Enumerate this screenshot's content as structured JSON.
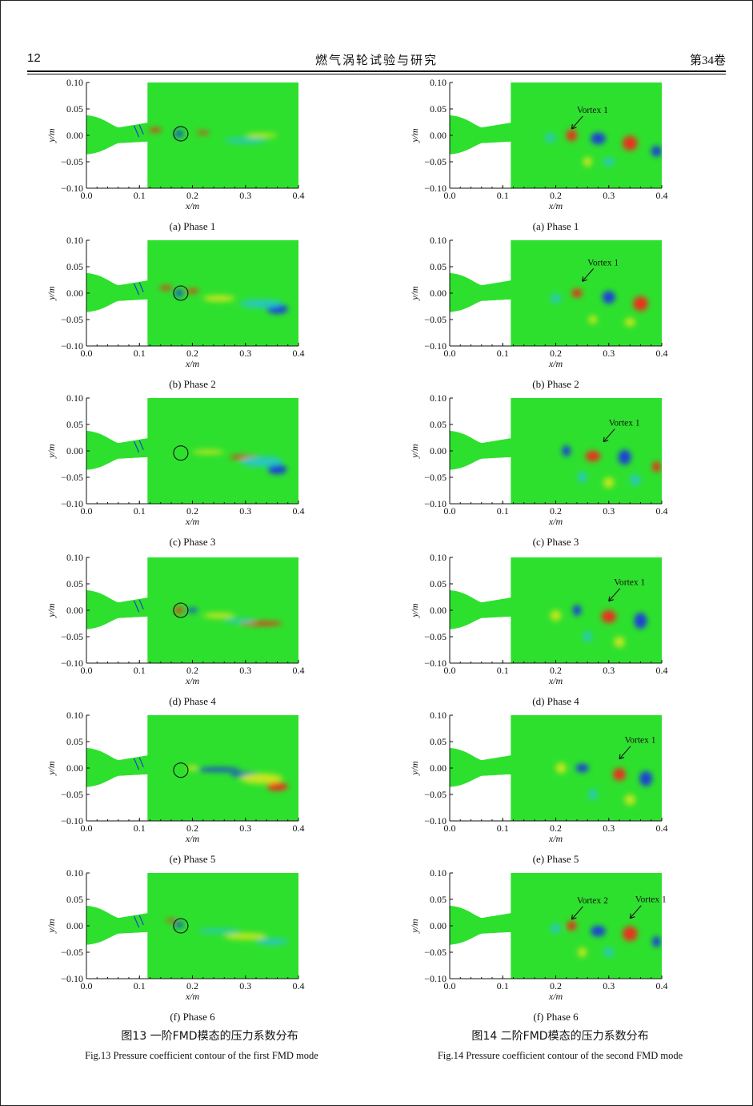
{
  "header": {
    "page_number": "12",
    "journal_title": "燃气涡轮试验与研究",
    "volume": "第34卷"
  },
  "figures": [
    {
      "caption_cn": "图13 一阶FMD模态的压力系数分布",
      "caption_en": "Fig.13 Pressure coefficient contour of the first FMD mode",
      "panels": [
        {
          "label": "(a)  Phase 1"
        },
        {
          "label": "(b)  Phase 2"
        },
        {
          "label": "(c)  Phase 3"
        },
        {
          "label": "(d)  Phase 4"
        },
        {
          "label": "(e)  Phase 5"
        },
        {
          "label": "(f)  Phase 6"
        }
      ]
    },
    {
      "caption_cn": "图14 二阶FMD模态的压力系数分布",
      "caption_en": "Fig.14 Pressure coefficient contour of the second FMD mode",
      "panels": [
        {
          "label": "(a)  Phase 1",
          "annotations": [
            "Vortex 1"
          ]
        },
        {
          "label": "(b)  Phase 2",
          "annotations": [
            "Vortex 1"
          ]
        },
        {
          "label": "(c)  Phase 3",
          "annotations": [
            "Vortex 1"
          ]
        },
        {
          "label": "(d)  Phase 4",
          "annotations": [
            "Vortex 1"
          ]
        },
        {
          "label": "(e)  Phase 5",
          "annotations": [
            "Vortex 1"
          ]
        },
        {
          "label": "(f)  Phase 6",
          "annotations": [
            "Vortex 2",
            "Vortex 1"
          ]
        }
      ]
    }
  ],
  "axes": {
    "xlabel": "x/m",
    "ylabel": "y/m",
    "xticks": [
      "0.0",
      "0.1",
      "0.2",
      "0.3",
      "0.4"
    ],
    "yticks": [
      "0.10",
      "0.05",
      "0.00",
      "−0.05",
      "−0.10"
    ],
    "xlim": [
      0,
      0.4
    ],
    "ylim": [
      -0.1,
      0.1
    ]
  },
  "colors": {
    "background_field": "#2ee02e",
    "positive": "#e8311a",
    "negative": "#1a3fd6",
    "weak_positive": "#c8e61e",
    "weak_negative": "#27c8c0"
  },
  "chart_data": [
    {
      "type": "heatmap",
      "title": "",
      "xlabel": "x/m",
      "ylabel": "y/m",
      "xlim": [
        0,
        0.4
      ],
      "ylim": [
        -0.1,
        0.1
      ],
      "figure": "Fig.13",
      "phase": 1
    },
    {
      "type": "heatmap",
      "title": "",
      "xlabel": "x/m",
      "ylabel": "y/m",
      "xlim": [
        0,
        0.4
      ],
      "ylim": [
        -0.1,
        0.1
      ],
      "figure": "Fig.14",
      "phase": 1
    }
  ]
}
